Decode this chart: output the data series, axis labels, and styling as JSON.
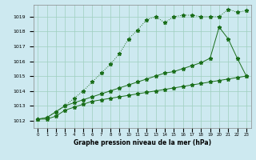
{
  "x": [
    0,
    1,
    2,
    3,
    4,
    5,
    6,
    7,
    8,
    9,
    10,
    11,
    12,
    13,
    14,
    15,
    16,
    17,
    18,
    19,
    20,
    21,
    22,
    23
  ],
  "line1_dotted": [
    1012.1,
    1012.2,
    1012.6,
    1013.0,
    1013.5,
    1014.0,
    1014.6,
    1015.2,
    1015.8,
    1016.5,
    1017.5,
    1018.1,
    1018.8,
    1019.0,
    1018.6,
    1019.0,
    1019.1,
    1019.1,
    1019.0,
    1019.0,
    1019.0,
    1019.5,
    1019.3,
    1019.4
  ],
  "line2_solid_top": [
    1012.1,
    1012.2,
    1012.6,
    1013.0,
    1013.2,
    1013.4,
    1013.6,
    1013.8,
    1014.0,
    1014.2,
    1014.4,
    1014.6,
    1014.8,
    1015.0,
    1015.2,
    1015.3,
    1015.5,
    1015.7,
    1015.9,
    1016.2,
    1018.3,
    1017.5,
    1016.2,
    1015.0
  ],
  "line3_solid_bottom": [
    1012.1,
    1012.1,
    1012.3,
    1012.7,
    1012.9,
    1013.1,
    1013.3,
    1013.4,
    1013.5,
    1013.6,
    1013.7,
    1013.8,
    1013.9,
    1014.0,
    1014.1,
    1014.2,
    1014.3,
    1014.4,
    1014.5,
    1014.6,
    1014.7,
    1014.8,
    1014.9,
    1015.0
  ],
  "bg_color": "#cde9f0",
  "line_color": "#1a6e1a",
  "grid_color": "#9ecfbf",
  "xlabel": "Graphe pression niveau de la mer (hPa)",
  "ylim_min": 1011.5,
  "ylim_max": 1019.8,
  "xlim_min": -0.5,
  "xlim_max": 23.5,
  "yticks": [
    1012,
    1013,
    1014,
    1015,
    1016,
    1017,
    1018,
    1019
  ]
}
